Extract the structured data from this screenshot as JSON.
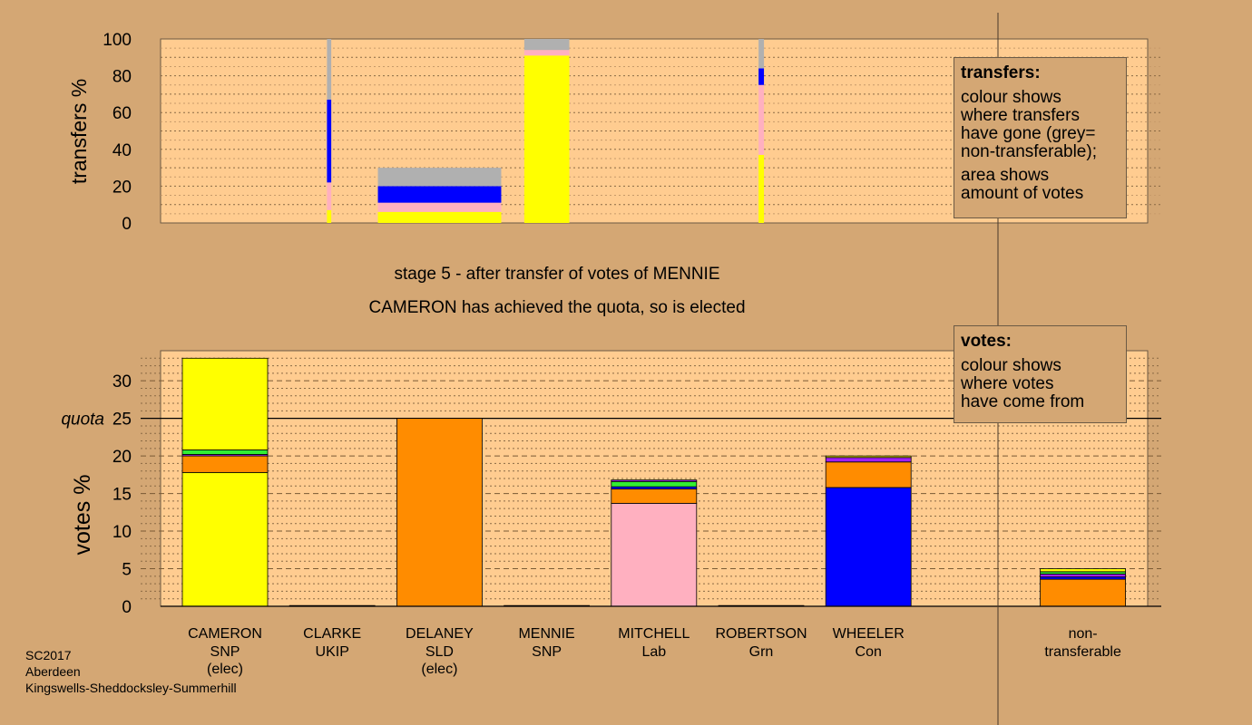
{
  "colors": {
    "background": "#d4a774",
    "plot_background": "#ffcc90",
    "SNP": "#ffff00",
    "UKIP": "#a020f0",
    "SLD": "#ff8c00",
    "Lab": "#ffb0c0",
    "Grn": "#33ee33",
    "Con": "#0000ff",
    "non-transferable": "#b0b0b0"
  },
  "captions": {
    "stage": "stage 5 - after transfer of votes of MENNIE",
    "result": "CAMERON has achieved the quota, so is elected"
  },
  "legend_transfers": {
    "title": "transfers:",
    "para1": [
      "colour shows",
      "where transfers",
      "have gone (grey=",
      "non-transferable);"
    ],
    "para2": [
      "area shows",
      "amount of votes"
    ]
  },
  "legend_votes": {
    "title": "votes:",
    "para1": [
      "colour shows",
      "where votes",
      "have come from"
    ]
  },
  "footer": {
    "line1": "SC2017",
    "line2": "Aberdeen",
    "line3": "Kingswells-Sheddocksley-Summerhill"
  },
  "candidates": [
    {
      "name": "CAMERON",
      "party": "SNP",
      "status": "(elec)"
    },
    {
      "name": "CLARKE",
      "party": "UKIP",
      "status": ""
    },
    {
      "name": "DELANEY",
      "party": "SLD",
      "status": "(elec)"
    },
    {
      "name": "MENNIE",
      "party": "SNP",
      "status": ""
    },
    {
      "name": "MITCHELL",
      "party": "Lab",
      "status": ""
    },
    {
      "name": "ROBERTSON",
      "party": "Grn",
      "status": ""
    },
    {
      "name": "WHEELER",
      "party": "Con",
      "status": ""
    },
    {
      "name": "non-",
      "party": "transferable",
      "status": ""
    }
  ],
  "chart_data": [
    {
      "type": "bar",
      "ylabel": "transfers %",
      "ylim": [
        0,
        100
      ],
      "yticks": [
        0,
        20,
        40,
        60,
        80,
        100
      ],
      "grid": "dotted horizontal",
      "bars": [
        {
          "slot": 1.47,
          "width": 0.04,
          "segments": [
            {
              "color": "SNP",
              "to": 7
            },
            {
              "color": "Lab",
              "to": 22
            },
            {
              "color": "Con",
              "to": 67
            },
            {
              "color": "non-transferable",
              "to": 100
            }
          ]
        },
        {
          "slot": 2.5,
          "width": 1.15,
          "segments": [
            {
              "color": "SNP",
              "to": 6
            },
            {
              "color": "Lab",
              "to": 11
            },
            {
              "color": "Con",
              "to": 20
            },
            {
              "color": "non-transferable",
              "to": 30
            }
          ]
        },
        {
          "slot": 3.5,
          "width": 0.42,
          "segments": [
            {
              "color": "SNP",
              "to": 91
            },
            {
              "color": "Lab",
              "to": 94
            },
            {
              "color": "non-transferable",
              "to": 100
            }
          ]
        },
        {
          "slot": 5.5,
          "width": 0.05,
          "segments": [
            {
              "color": "SNP",
              "to": 37
            },
            {
              "color": "Lab",
              "to": 75
            },
            {
              "color": "Con",
              "to": 84
            },
            {
              "color": "non-transferable",
              "to": 100
            }
          ]
        }
      ]
    },
    {
      "type": "bar",
      "ylabel": "votes %",
      "ylim": [
        0,
        34
      ],
      "yticks": [
        0,
        5,
        10,
        15,
        20,
        25,
        30
      ],
      "quota": {
        "label": "quota",
        "value": 25
      },
      "grid": "dashed every 5, dotted every 1",
      "bars": [
        {
          "candidate": "CAMERON",
          "segments": [
            {
              "color": "SNP",
              "to": 17.8
            },
            {
              "color": "SLD",
              "to": 20.0
            },
            {
              "color": "UKIP",
              "to": 20.2
            },
            {
              "color": "Grn",
              "to": 20.8
            },
            {
              "color": "SNP",
              "to": 33.0
            }
          ]
        },
        {
          "candidate": "CLARKE",
          "segments": [
            {
              "color": "UKIP",
              "to": 0.1
            }
          ]
        },
        {
          "candidate": "DELANEY",
          "segments": [
            {
              "color": "SLD",
              "to": 25.0
            }
          ]
        },
        {
          "candidate": "MENNIE",
          "segments": [
            {
              "color": "SNP",
              "to": 0.1
            }
          ]
        },
        {
          "candidate": "MITCHELL",
          "segments": [
            {
              "color": "Lab",
              "to": 13.7
            },
            {
              "color": "SLD",
              "to": 15.6
            },
            {
              "color": "Con",
              "to": 15.9
            },
            {
              "color": "Grn",
              "to": 16.6
            },
            {
              "color": "UKIP",
              "to": 16.8
            }
          ]
        },
        {
          "candidate": "ROBERTSON",
          "segments": [
            {
              "color": "Grn",
              "to": 0.1
            }
          ]
        },
        {
          "candidate": "WHEELER",
          "segments": [
            {
              "color": "Con",
              "to": 15.8
            },
            {
              "color": "SLD",
              "to": 19.2
            },
            {
              "color": "UKIP",
              "to": 19.8
            },
            {
              "color": "SNP",
              "to": 20.0
            }
          ]
        },
        {
          "candidate": "non-transferable",
          "segments": [
            {
              "color": "SLD",
              "to": 3.6
            },
            {
              "color": "Con",
              "to": 3.9
            },
            {
              "color": "UKIP",
              "to": 4.3
            },
            {
              "color": "Grn",
              "to": 4.6
            },
            {
              "color": "SNP",
              "to": 5.0
            }
          ]
        }
      ]
    }
  ]
}
